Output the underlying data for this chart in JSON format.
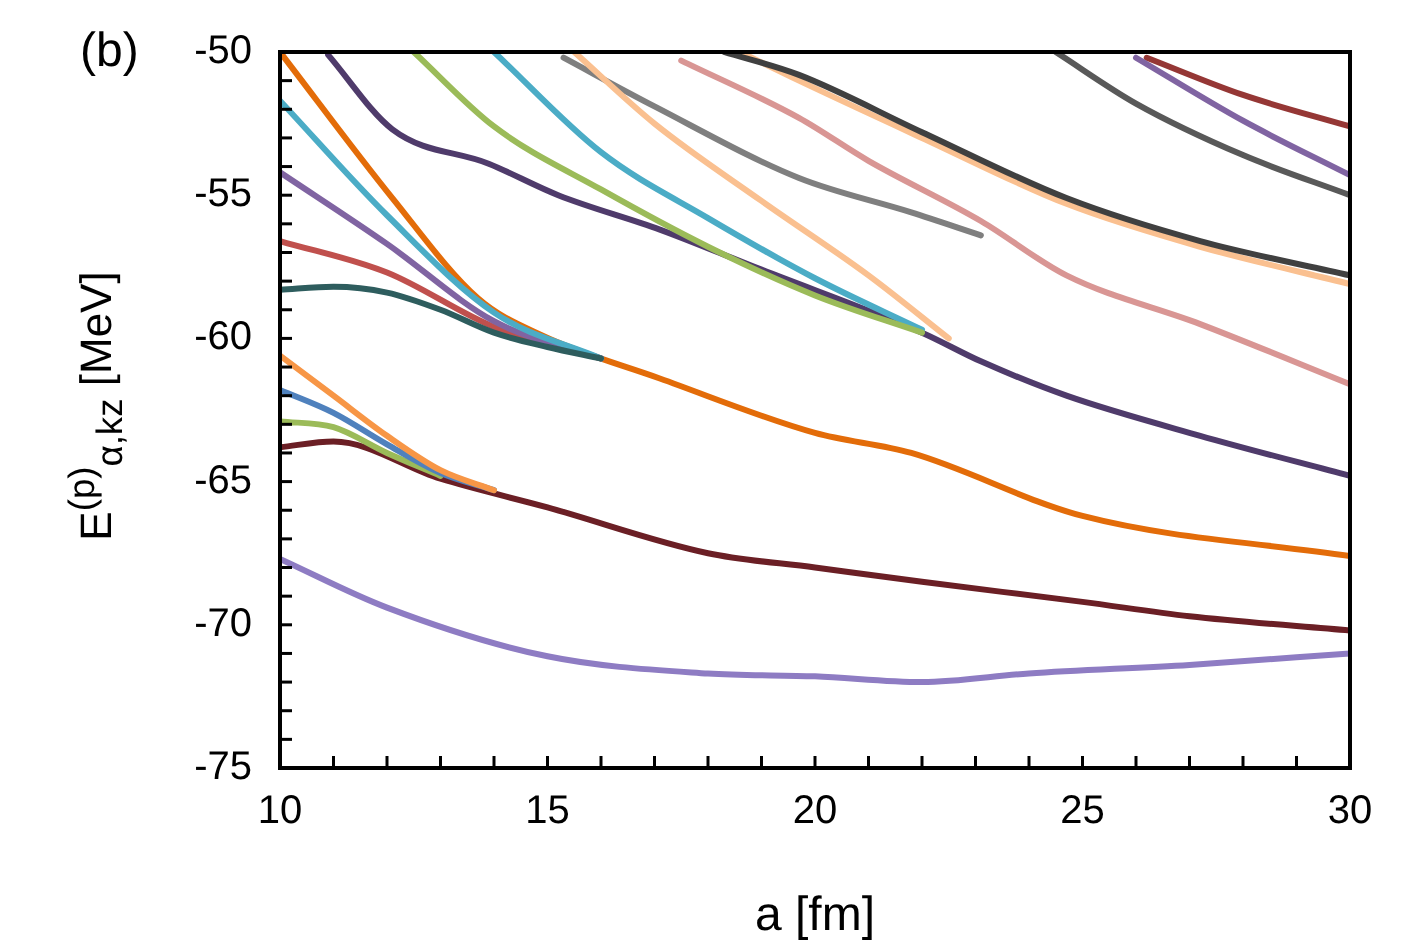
{
  "chart_data": {
    "type": "line",
    "xlabel": "a [fm]",
    "ylabel": "E$^{(p)}$$_{α,kz}$ [MeV]",
    "annotations": [
      "(b)"
    ],
    "xlim": [
      10,
      30
    ],
    "ylim": [
      -75,
      -50
    ],
    "xticks": [
      10,
      {
        "value": 11,
        "label": null
      },
      {
        "value": 12,
        "label": null
      },
      {
        "value": 13,
        "label": null
      },
      {
        "value": 14,
        "label": null
      },
      15,
      {
        "value": 16,
        "label": null
      },
      {
        "value": 17,
        "label": null
      },
      {
        "value": 18,
        "label": null
      },
      {
        "value": 19,
        "label": null
      },
      20,
      {
        "value": 21,
        "label": null
      },
      {
        "value": 22,
        "label": null
      },
      {
        "value": 23,
        "label": null
      },
      {
        "value": 24,
        "label": null
      },
      25,
      {
        "value": 26,
        "label": null
      },
      {
        "value": 27,
        "label": null
      },
      {
        "value": 28,
        "label": null
      },
      {
        "value": 29,
        "label": null
      },
      30
    ],
    "yticks": [
      -75,
      {
        "value": -74,
        "label": null
      },
      {
        "value": -73,
        "label": null
      },
      {
        "value": -72,
        "label": null
      },
      {
        "value": -71,
        "label": null
      },
      -70,
      {
        "value": -69,
        "label": null
      },
      {
        "value": -68,
        "label": null
      },
      {
        "value": -67,
        "label": null
      },
      {
        "value": -66,
        "label": null
      },
      -65,
      {
        "value": -64,
        "label": null
      },
      {
        "value": -63,
        "label": null
      },
      {
        "value": -62,
        "label": null
      },
      {
        "value": -61,
        "label": null
      },
      -60,
      {
        "value": -59,
        "label": null
      },
      {
        "value": -58,
        "label": null
      },
      {
        "value": -57,
        "label": null
      },
      {
        "value": -56,
        "label": null
      },
      -55,
      {
        "value": -54,
        "label": null
      },
      {
        "value": -53,
        "label": null
      },
      {
        "value": -52,
        "label": null
      },
      {
        "value": -51,
        "label": null
      },
      -50
    ],
    "line_style": "solid",
    "series": [
      {
        "color": "#8e7cc3",
        "x": [
          10,
          12,
          15,
          18,
          20,
          22,
          24,
          27,
          30
        ],
        "values": [
          -67.7,
          -69.4,
          -71.1,
          -71.7,
          -71.8,
          -72.0,
          -71.7,
          -71.4,
          -71.0
        ]
      },
      {
        "color": "#f79646",
        "x": [
          10,
          11,
          12,
          13,
          14
        ],
        "values": [
          -60.6,
          -62.0,
          -63.4,
          -64.6,
          -65.3
        ]
      },
      {
        "color": "#4f81bd",
        "x": [
          10,
          11,
          12,
          13,
          14
        ],
        "values": [
          -61.8,
          -62.6,
          -63.7,
          -64.7,
          -65.3
        ]
      },
      {
        "color": "#9bbb59",
        "x": [
          10,
          11,
          12,
          13
        ],
        "values": [
          -62.9,
          -63.1,
          -64.0,
          -64.8
        ]
      },
      {
        "color": "#6b1f25",
        "x": [
          10,
          11,
          13,
          15,
          18,
          20,
          22,
          25,
          27,
          30
        ],
        "values": [
          -63.8,
          -63.6,
          -64.9,
          -65.9,
          -67.5,
          -68.0,
          -68.5,
          -69.2,
          -69.7,
          -70.2
        ]
      },
      {
        "color": "#2e5d5e",
        "x": [
          10,
          11,
          12,
          13,
          14,
          15,
          16
        ],
        "values": [
          -58.3,
          -58.2,
          -58.4,
          -59.0,
          -59.8,
          -60.3,
          -60.7
        ]
      },
      {
        "color": "#4bacc6",
        "x": [
          10,
          12,
          14,
          16
        ],
        "values": [
          -51.7,
          -55.7,
          -59.1,
          -60.7
        ]
      },
      {
        "color": "#8064a2",
        "x": [
          10,
          12,
          14,
          16
        ],
        "values": [
          -54.2,
          -56.7,
          -59.4,
          -60.7
        ]
      },
      {
        "color": "#c0504d",
        "x": [
          10,
          12,
          14,
          16
        ],
        "values": [
          -56.6,
          -57.7,
          -59.6,
          -60.7
        ]
      },
      {
        "color": "#e36c09",
        "x": [
          10,
          12.1,
          13.7,
          14.9,
          17.1,
          20,
          21.8,
          25,
          30
        ],
        "values": [
          -50,
          -55.1,
          -58.6,
          -59.9,
          -61.4,
          -63.3,
          -64.0,
          -66.2,
          -67.6
        ]
      },
      {
        "color": "#9bbb59",
        "x": [
          12.5,
          14,
          16,
          18,
          20,
          22
        ],
        "values": [
          -50,
          -52.6,
          -54.8,
          -56.8,
          -58.5,
          -59.8
        ]
      },
      {
        "color": "#4bacc6",
        "x": [
          14,
          16,
          18,
          20,
          22
        ],
        "values": [
          -50,
          -53.5,
          -55.8,
          -57.9,
          -59.7
        ]
      },
      {
        "color": "#fac090",
        "x": [
          15.5,
          17,
          19,
          21,
          22.5
        ],
        "values": [
          -50,
          -52.5,
          -55.2,
          -57.8,
          -60.0
        ]
      },
      {
        "color": "#4f3b6b",
        "x": [
          10.9,
          12.1,
          13.9,
          15.2,
          17.1,
          19,
          22,
          23.1,
          24.7,
          27.2,
          30
        ],
        "values": [
          -50.1,
          -52.7,
          -53.9,
          -55.0,
          -56.2,
          -57.6,
          -59.8,
          -60.8,
          -62.0,
          -63.4,
          -64.8
        ]
      },
      {
        "color": "#7f7f7f",
        "x": [
          15.3,
          17,
          19.7,
          21.8,
          23.1
        ],
        "values": [
          -50.2,
          -51.9,
          -54.4,
          -55.6,
          -56.4
        ]
      },
      {
        "color": "#d99694",
        "x": [
          17.5,
          19.7,
          21,
          23.1,
          24.7,
          27.2,
          30
        ],
        "values": [
          -50.3,
          -52.3,
          -53.8,
          -55.9,
          -57.8,
          -59.5,
          -61.6
        ]
      },
      {
        "color": "#404040",
        "x": [
          18.3,
          19.7,
          22,
          24.7,
          27.2,
          30
        ],
        "values": [
          -50,
          -50.8,
          -52.8,
          -55.1,
          -56.6,
          -57.8
        ]
      },
      {
        "color": "#fac090",
        "x": [
          18.6,
          19.7,
          22,
          24.7,
          27.2,
          30
        ],
        "values": [
          -50,
          -51.0,
          -53.0,
          -55.3,
          -56.8,
          -58.1
        ]
      },
      {
        "color": "#595959",
        "x": [
          24.5,
          26,
          28,
          30
        ],
        "values": [
          -50,
          -51.8,
          -53.6,
          -55.0
        ]
      },
      {
        "color": "#8064a2",
        "x": [
          26,
          28,
          30
        ],
        "values": [
          -50.2,
          -52.4,
          -54.3
        ]
      },
      {
        "color": "#953735",
        "x": [
          26.2,
          28,
          30
        ],
        "values": [
          -50.2,
          -51.5,
          -52.6
        ]
      }
    ]
  }
}
